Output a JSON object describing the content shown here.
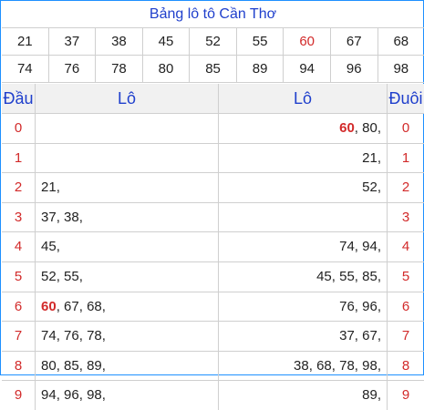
{
  "title": "Bảng lô tô Cần Thơ",
  "numbers_row1": [
    "21",
    "37",
    "38",
    "45",
    "52",
    "55",
    "60",
    "67",
    "68"
  ],
  "numbers_row2": [
    "74",
    "76",
    "78",
    "80",
    "85",
    "89",
    "94",
    "96",
    "98"
  ],
  "highlight_number": "60",
  "headers": {
    "dau": "Đầu",
    "lo_left": "Lô",
    "lo_right": "Lô",
    "duoi": "Đuôi"
  },
  "rows": [
    {
      "dau": "0",
      "left": [],
      "right": [
        "60",
        "80"
      ],
      "duoi": "0"
    },
    {
      "dau": "1",
      "left": [],
      "right": [
        "21"
      ],
      "duoi": "1"
    },
    {
      "dau": "2",
      "left": [
        "21"
      ],
      "right": [
        "52"
      ],
      "duoi": "2"
    },
    {
      "dau": "3",
      "left": [
        "37",
        "38"
      ],
      "right": [],
      "duoi": "3"
    },
    {
      "dau": "4",
      "left": [
        "45"
      ],
      "right": [
        "74",
        "94"
      ],
      "duoi": "4"
    },
    {
      "dau": "5",
      "left": [
        "52",
        "55"
      ],
      "right": [
        "45",
        "55",
        "85"
      ],
      "duoi": "5"
    },
    {
      "dau": "6",
      "left": [
        "60",
        "67",
        "68"
      ],
      "right": [
        "76",
        "96"
      ],
      "duoi": "6"
    },
    {
      "dau": "7",
      "left": [
        "74",
        "76",
        "78"
      ],
      "right": [
        "37",
        "67"
      ],
      "duoi": "7"
    },
    {
      "dau": "8",
      "left": [
        "80",
        "85",
        "89"
      ],
      "right": [
        "38",
        "68",
        "78",
        "98"
      ],
      "duoi": "8"
    },
    {
      "dau": "9",
      "left": [
        "94",
        "96",
        "98"
      ],
      "right": [
        "89"
      ],
      "duoi": "9"
    }
  ]
}
